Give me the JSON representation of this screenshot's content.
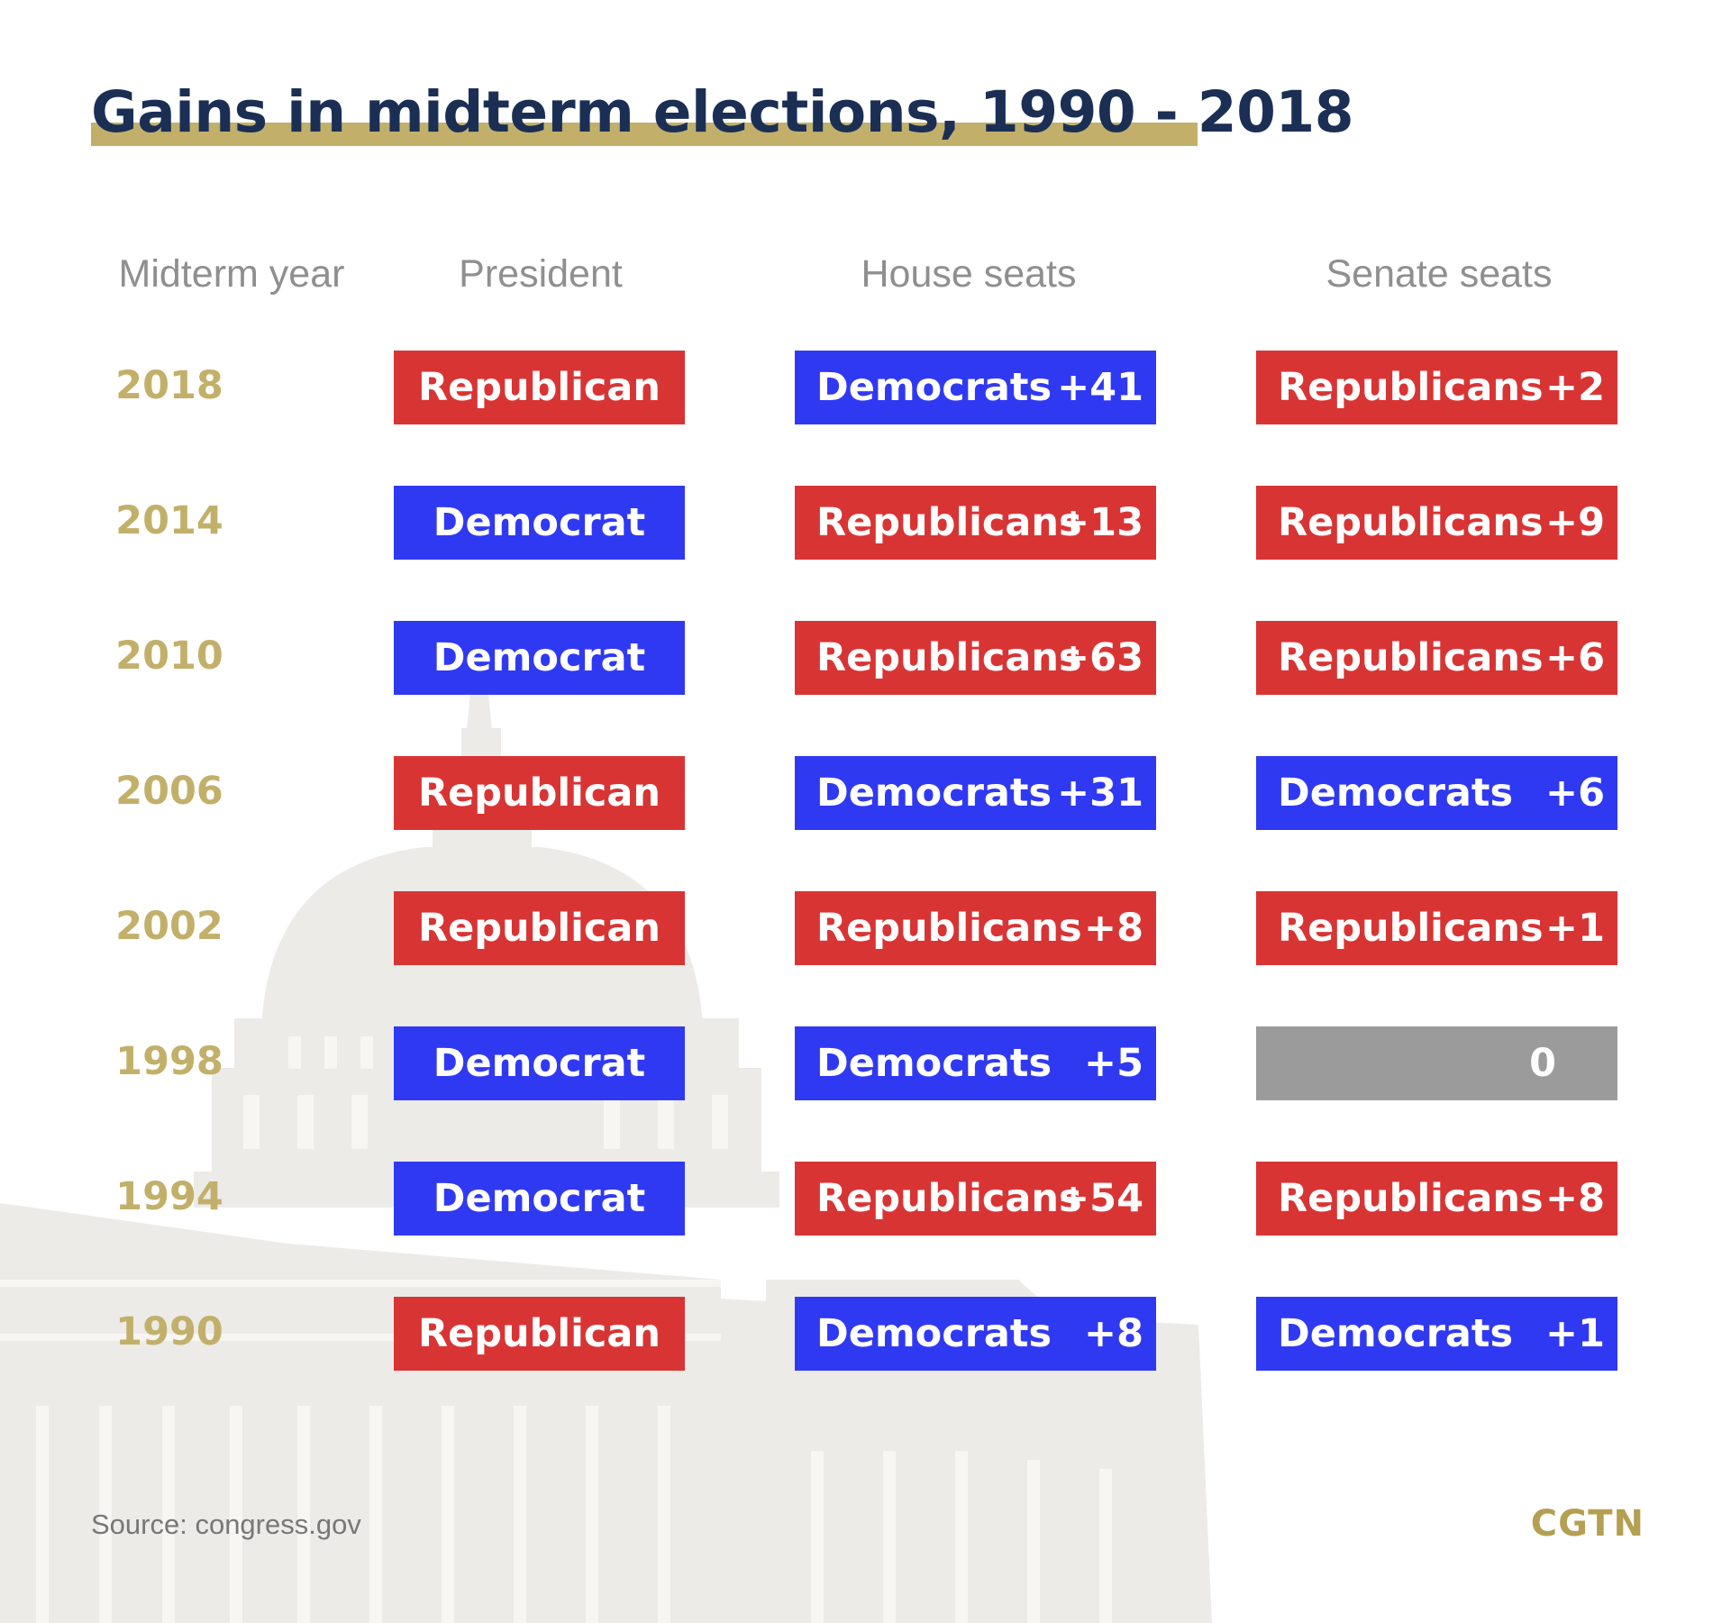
{
  "title": "Gains in midterm elections, 1990 - 2018",
  "headers": {
    "year": "Midterm year",
    "president": "President",
    "house": "House seats",
    "senate": "Senate seats"
  },
  "colors": {
    "Republican": "#d93434",
    "Democrat": "#3039f2",
    "None": "#9b9b9b",
    "accent": "#c2b06a",
    "title": "#1b2f55"
  },
  "chart_data": {
    "type": "table",
    "title": "Gains in midterm elections, 1990 - 2018",
    "columns": [
      "Midterm year",
      "President",
      "House seats",
      "Senate seats"
    ],
    "rows": [
      {
        "year": "2018",
        "president": "Republican",
        "house": {
          "party": "Democrats",
          "gain": "+41"
        },
        "senate": {
          "party": "Republicans",
          "gain": "+2"
        }
      },
      {
        "year": "2014",
        "president": "Democrat",
        "house": {
          "party": "Republicans",
          "gain": "+13"
        },
        "senate": {
          "party": "Republicans",
          "gain": "+9"
        }
      },
      {
        "year": "2010",
        "president": "Democrat",
        "house": {
          "party": "Republicans",
          "gain": "+63"
        },
        "senate": {
          "party": "Republicans",
          "gain": "+6"
        }
      },
      {
        "year": "2006",
        "president": "Republican",
        "house": {
          "party": "Democrats",
          "gain": "+31"
        },
        "senate": {
          "party": "Democrats",
          "gain": "+6"
        }
      },
      {
        "year": "2002",
        "president": "Republican",
        "house": {
          "party": "Republicans",
          "gain": "+8"
        },
        "senate": {
          "party": "Republicans",
          "gain": "+1"
        }
      },
      {
        "year": "1998",
        "president": "Democrat",
        "house": {
          "party": "Democrats",
          "gain": "+5"
        },
        "senate": {
          "party": "",
          "gain": "0"
        }
      },
      {
        "year": "1994",
        "president": "Democrat",
        "house": {
          "party": "Republicans",
          "gain": "+54"
        },
        "senate": {
          "party": "Republicans",
          "gain": "+8"
        }
      },
      {
        "year": "1990",
        "president": "Republican",
        "house": {
          "party": "Democrats",
          "gain": "+8"
        },
        "senate": {
          "party": "Democrats",
          "gain": "+1"
        }
      }
    ]
  },
  "source": "Source: congress.gov",
  "logo": "CGTN"
}
